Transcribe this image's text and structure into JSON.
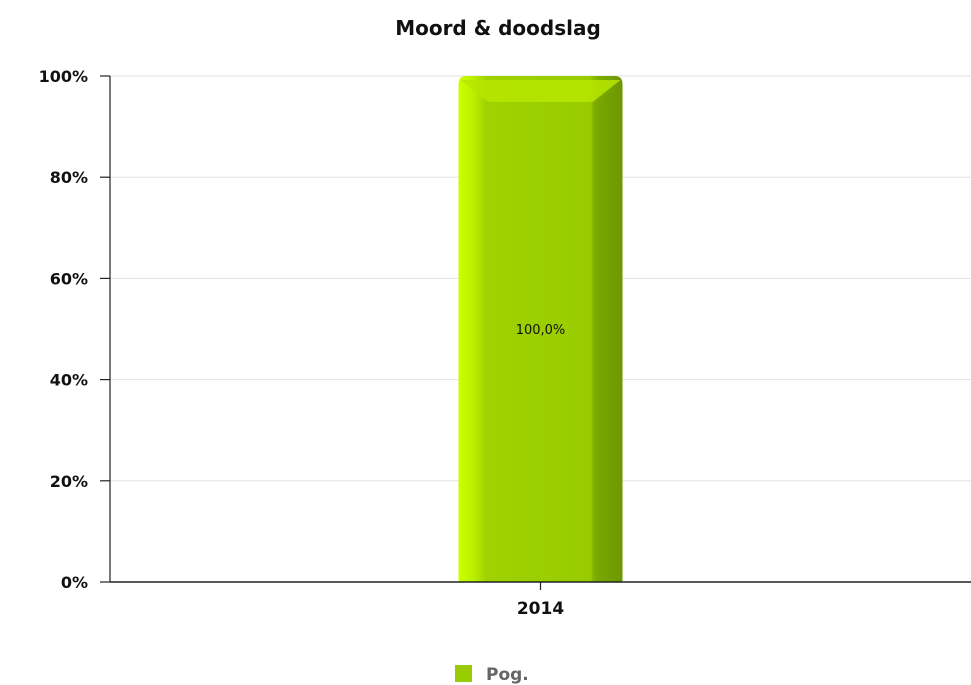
{
  "chart_data": {
    "type": "bar",
    "title": "Moord & doodslag",
    "categories": [
      "2014"
    ],
    "series": [
      {
        "name": "Pog.",
        "values": [
          100
        ],
        "color": "#99cc00"
      }
    ],
    "data_labels": [
      "100,0%"
    ],
    "ylim": [
      0,
      100
    ],
    "yticks": [
      0,
      20,
      40,
      60,
      80,
      100
    ],
    "ytick_labels": [
      "0%",
      "20%",
      "40%",
      "60%",
      "80%",
      "100%"
    ],
    "grid": true,
    "legend_position": "bottom-center"
  }
}
